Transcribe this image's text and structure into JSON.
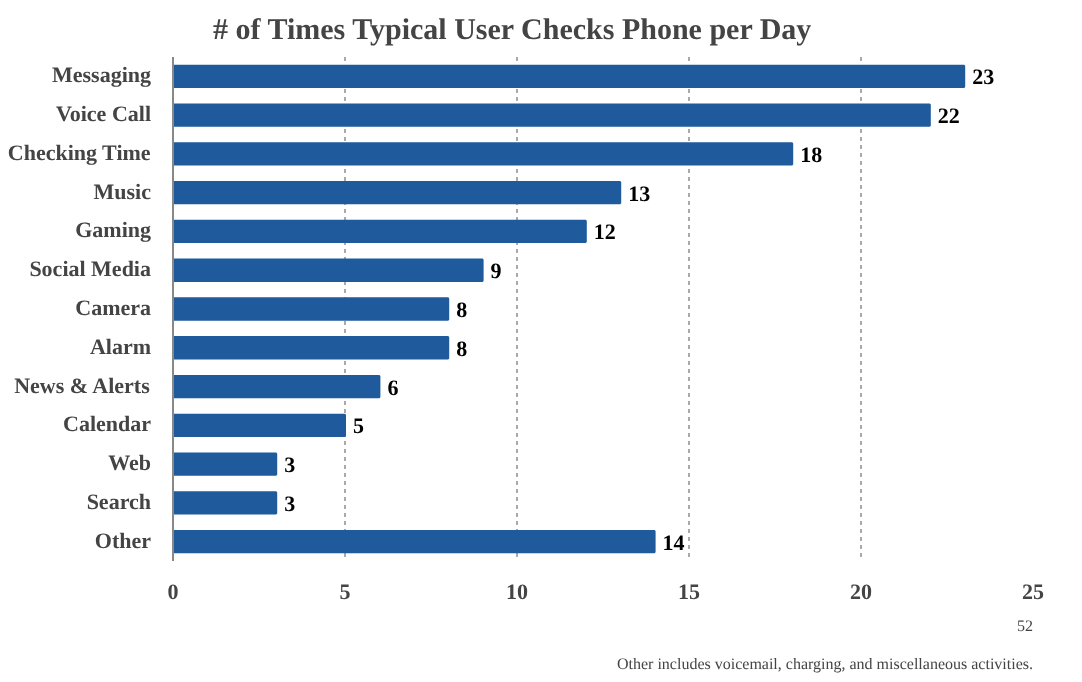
{
  "chart_data": {
    "type": "bar",
    "orientation": "horizontal",
    "title": "# of Times Typical User Checks Phone per Day",
    "categories": [
      "Messaging",
      "Voice Call",
      "Checking Time",
      "Music",
      "Gaming",
      "Social Media",
      "Camera",
      "Alarm",
      "News & Alerts",
      "Calendar",
      "Web",
      "Search",
      "Other"
    ],
    "values": [
      23,
      22,
      18,
      13,
      12,
      9,
      8,
      8,
      6,
      5,
      3,
      3,
      14
    ],
    "color": "#1f5b9c",
    "xlim": [
      0,
      25
    ],
    "xticks": [
      0,
      5,
      10,
      15,
      20,
      25
    ],
    "grid": "x",
    "data_labels": true,
    "annotations": [
      "Other includes voicemail, charging, and miscellaneous activities.",
      "52"
    ]
  }
}
